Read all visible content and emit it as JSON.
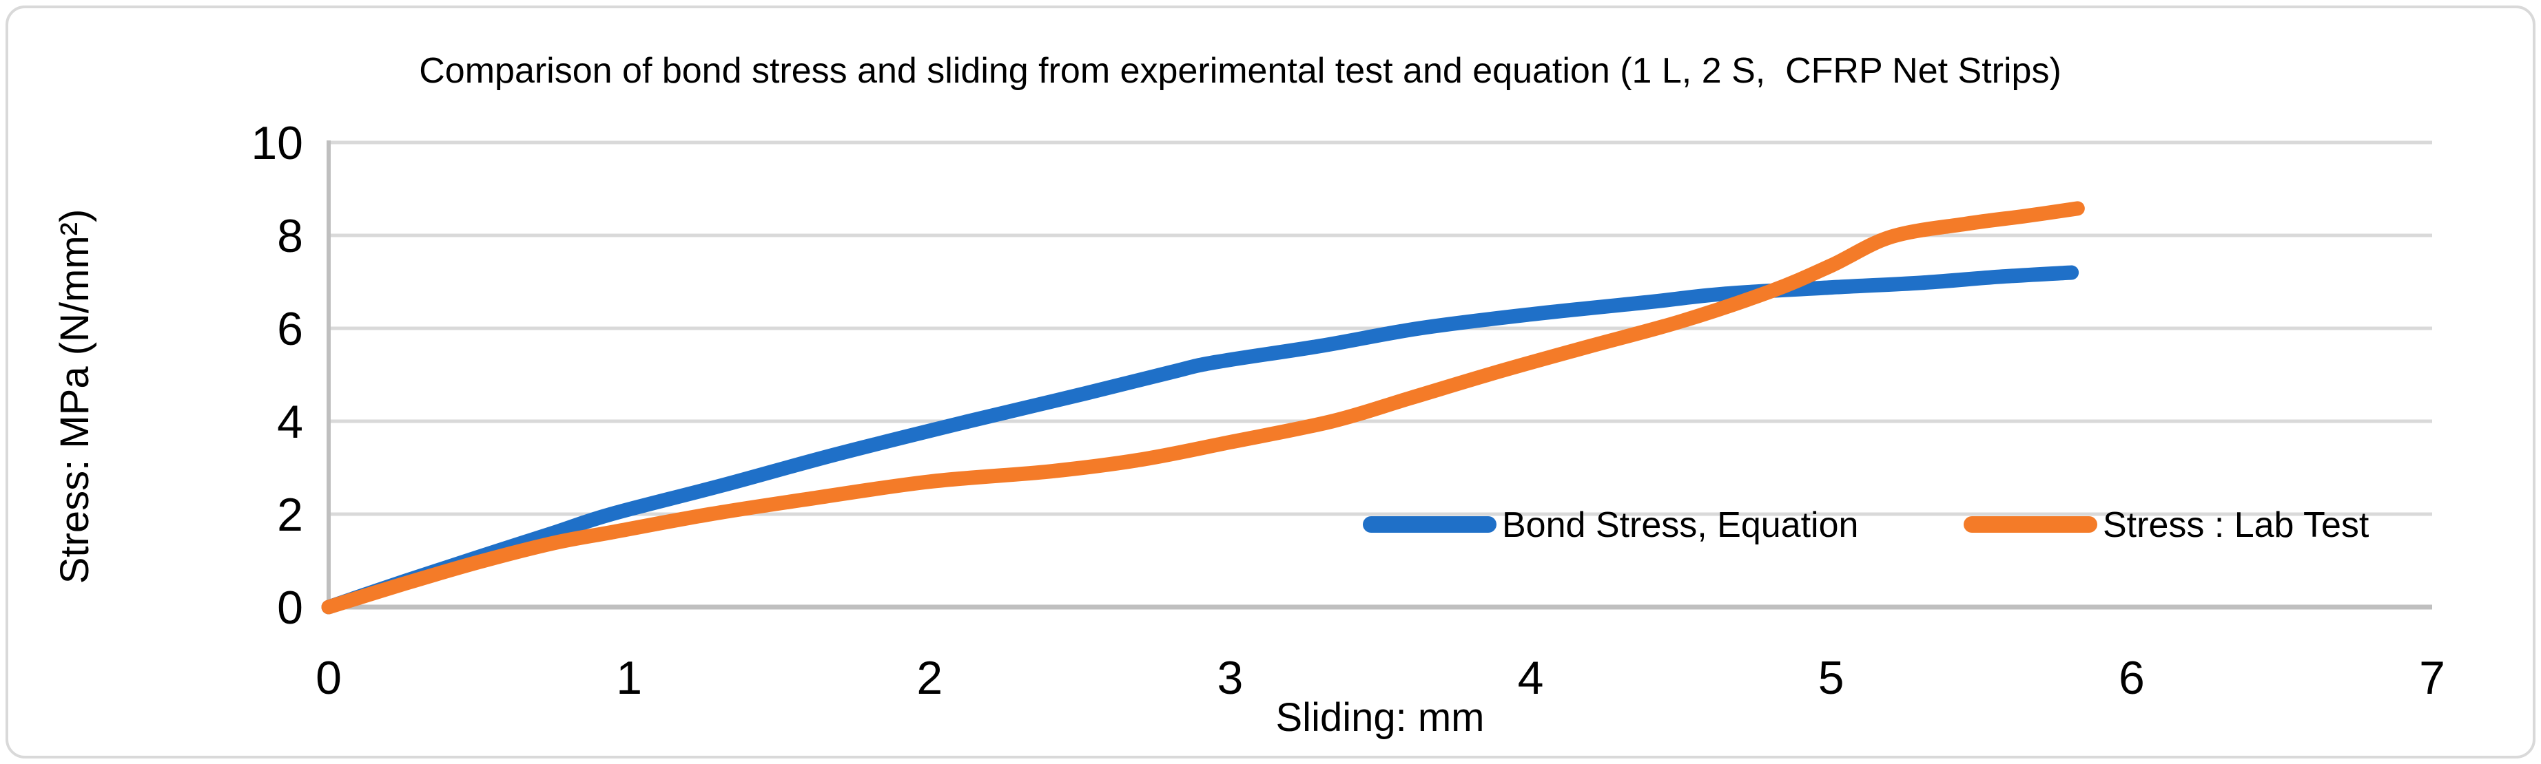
{
  "figure": {
    "background": "#FFFFFF",
    "border_color": "#D9D9D9"
  },
  "chart_data": {
    "type": "line",
    "title": "Comparison of bond stress and sliding from experimental test and equation (1 L, 2 S,  CFRP Net Strips)",
    "xlabel": "Sliding: mm",
    "ylabel": "Stress: MPa (N/mm²)",
    "xlim": [
      0,
      7
    ],
    "ylim": [
      0,
      10
    ],
    "x_ticks": [
      0,
      1,
      2,
      3,
      4,
      5,
      6,
      7
    ],
    "y_ticks": [
      0,
      2,
      4,
      6,
      8,
      10
    ],
    "grid": "horizontal",
    "gridline_color": "#D9D9D9",
    "axis_line_color": "#BFBFBF",
    "legend_position": "inside-bottom-right",
    "series": [
      {
        "name": "Bond Stress, Equation",
        "color": "#1F70C8",
        "x": [
          0,
          0.25,
          0.5,
          0.75,
          0.94,
          1.31,
          1.69,
          2.13,
          2.5,
          2.8,
          2.95,
          3.3,
          3.63,
          4.0,
          4.4,
          4.64,
          5.0,
          5.3,
          5.56,
          5.8
        ],
        "y": [
          0,
          0.55,
          1.08,
          1.6,
          2.0,
          2.62,
          3.29,
          4.0,
          4.57,
          5.05,
          5.27,
          5.62,
          6.0,
          6.3,
          6.57,
          6.74,
          6.88,
          6.98,
          7.11,
          7.2
        ]
      },
      {
        "name": "Stress : Lab Test",
        "color": "#F47B28",
        "x": [
          0,
          0.25,
          0.5,
          0.75,
          0.95,
          1.27,
          1.6,
          2.0,
          2.4,
          2.7,
          3.0,
          3.34,
          3.6,
          3.9,
          4.2,
          4.5,
          4.8,
          5.0,
          5.2,
          5.45,
          5.65,
          5.82
        ],
        "y": [
          0,
          0.5,
          0.97,
          1.38,
          1.62,
          2.0,
          2.33,
          2.7,
          2.92,
          3.17,
          3.55,
          4.0,
          4.5,
          5.08,
          5.62,
          6.15,
          6.8,
          7.35,
          7.97,
          8.25,
          8.42,
          8.58
        ]
      }
    ]
  }
}
